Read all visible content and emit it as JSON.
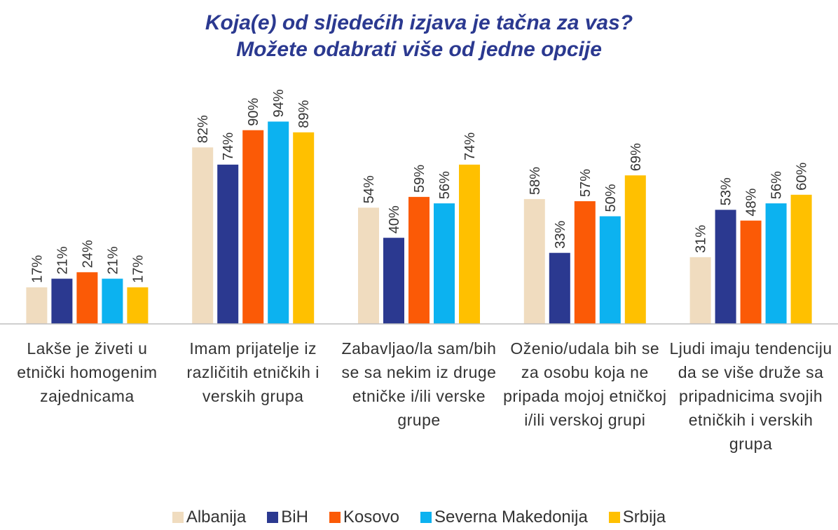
{
  "chart_data": {
    "type": "bar",
    "title": "Koja(e) od sljedećih izjava je tačna za vas?",
    "subtitle": "Možete odabrati više od jedne opcije",
    "categories": [
      "Lakše je živeti u etnički homogenim zajednicama",
      "Imam prijatelje iz različitih etničkih i verskih grupa",
      "Zabavljao/la sam/bih se sa nekim iz druge etničke i/ili verske grupe",
      "Oženio/udala bih se za osobu koja ne pripada mojoj etničkoj i/ili verskoj grupi",
      "Ljudi imaju tendenciju da se više druže sa pripadnicima svojih etničkih i verskih grupa"
    ],
    "ylim": [
      0,
      100
    ],
    "legend": "bottom",
    "series": [
      {
        "name": "Albanija",
        "color": "#f0dcbf",
        "values": [
          17,
          82,
          54,
          58,
          31
        ],
        "value_labels": [
          "17%",
          "82%",
          "54%",
          "58%",
          "31%"
        ]
      },
      {
        "name": "BiH",
        "color": "#2b3990",
        "values": [
          21,
          74,
          40,
          33,
          53
        ],
        "value_labels": [
          "21%",
          "74%",
          "40%",
          "33%",
          "53%"
        ]
      },
      {
        "name": "Kosovo",
        "color": "#fb5a06",
        "values": [
          24,
          90,
          59,
          57,
          48
        ],
        "value_labels": [
          "24%",
          "90%",
          "59%",
          "57%",
          "48%"
        ]
      },
      {
        "name": "Severna Makedonija",
        "color": "#0cb2f0",
        "values": [
          21,
          94,
          56,
          50,
          56
        ],
        "value_labels": [
          "21%",
          "94%",
          "56%",
          "50%",
          "56%"
        ]
      },
      {
        "name": "Srbija",
        "color": "#ffc000",
        "values": [
          17,
          89,
          74,
          69,
          60
        ],
        "value_labels": [
          "17%",
          "89%",
          "74%",
          "69%",
          "60%"
        ]
      }
    ]
  }
}
